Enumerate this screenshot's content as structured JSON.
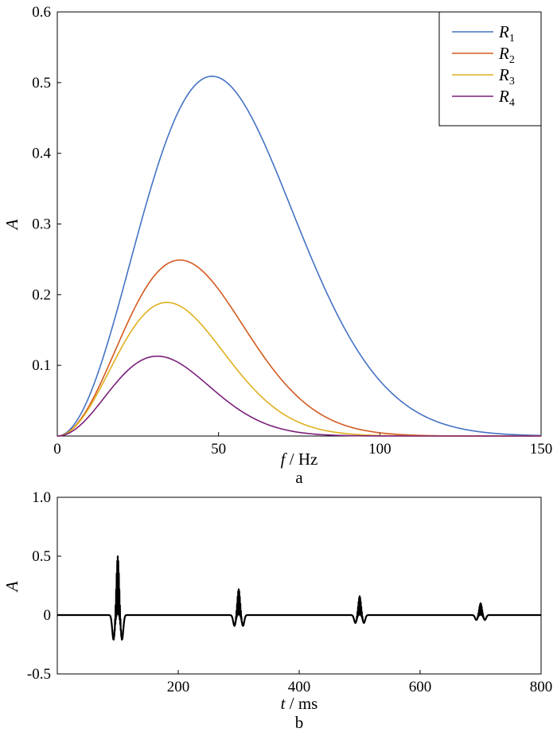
{
  "chart_data": [
    {
      "type": "line",
      "panel_label": "a",
      "xlabel": {
        "var": "f",
        "unit": " / Hz"
      },
      "ylabel": "A",
      "xlim": [
        0,
        150
      ],
      "ylim": [
        0,
        0.6
      ],
      "xticks": [
        0,
        50,
        100,
        150
      ],
      "yticks": [
        0.1,
        0.2,
        0.3,
        0.4,
        0.5,
        0.6
      ],
      "legend_position": "top-right",
      "series": [
        {
          "name": "R",
          "sub": "1",
          "color": "#4472c4",
          "peak_f": 48,
          "peak_a": 0.509
        },
        {
          "name": "R",
          "sub": "2",
          "color": "#d45a1f",
          "peak_f": 38,
          "peak_a": 0.249
        },
        {
          "name": "R",
          "sub": "3",
          "color": "#e0b020",
          "peak_f": 34,
          "peak_a": 0.189
        },
        {
          "name": "R",
          "sub": "4",
          "color": "#7b1f7b",
          "peak_f": 31,
          "peak_a": 0.113
        }
      ]
    },
    {
      "type": "line",
      "panel_label": "b",
      "xlabel": {
        "var": "t",
        "unit": " / ms"
      },
      "ylabel": "A",
      "xlim": [
        0,
        800
      ],
      "ylim": [
        -0.5,
        1.0
      ],
      "xticks": [
        200,
        400,
        600,
        800
      ],
      "yticks": [
        -0.5,
        0,
        0.5,
        1.0
      ],
      "ytick_labels": [
        "-0.5",
        "0",
        "0.5",
        "1.0"
      ],
      "color": "#000000",
      "wavelets": [
        {
          "t": 100,
          "amp": 0.5
        },
        {
          "t": 300,
          "amp": 0.22
        },
        {
          "t": 500,
          "amp": 0.16
        },
        {
          "t": 700,
          "amp": 0.1
        }
      ]
    }
  ]
}
